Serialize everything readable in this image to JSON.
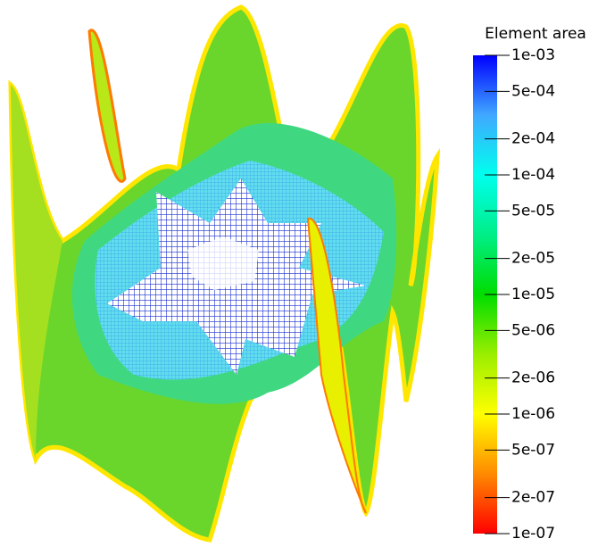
{
  "colorbar": {
    "title": "Element area",
    "scale": "log",
    "lim": [
      1e-07,
      0.001
    ],
    "ticks": [
      {
        "value": 0.001,
        "label": "1e-03"
      },
      {
        "value": 0.0005,
        "label": "5e-04"
      },
      {
        "value": 0.0002,
        "label": "2e-04"
      },
      {
        "value": 0.0001,
        "label": "1e-04"
      },
      {
        "value": 5e-05,
        "label": "5e-05"
      },
      {
        "value": 2e-05,
        "label": "2e-05"
      },
      {
        "value": 1e-05,
        "label": "1e-05"
      },
      {
        "value": 5e-06,
        "label": "5e-06"
      },
      {
        "value": 2e-06,
        "label": "2e-06"
      },
      {
        "value": 1e-06,
        "label": "1e-06"
      },
      {
        "value": 5e-07,
        "label": "5e-07"
      },
      {
        "value": 2e-07,
        "label": "2e-07"
      },
      {
        "value": 1e-07,
        "label": "1e-07"
      }
    ],
    "colors": [
      "#ff0000",
      "#ff8a00",
      "#ffff00",
      "#9aee00",
      "#00dd00",
      "#00ee88",
      "#00ffee",
      "#40a8ff",
      "#0000ff"
    ]
  }
}
